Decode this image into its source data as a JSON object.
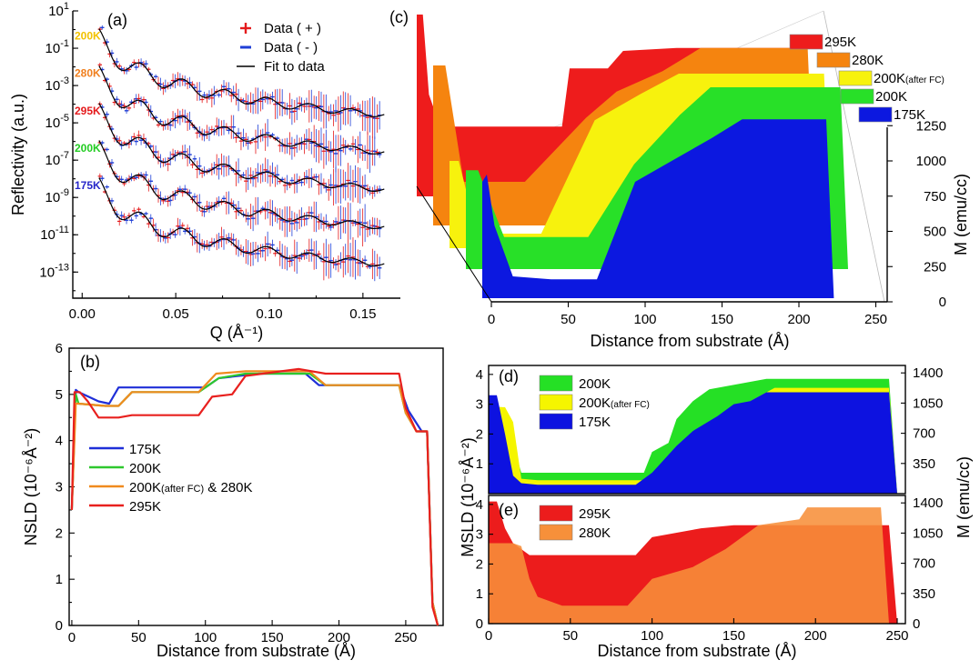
{
  "chart_data": [
    {
      "panel": "(a)",
      "type": "scatter",
      "ylog": true,
      "xlabel": "Q (Å⁻¹)",
      "ylabel": "Reflectivity (a.u.)",
      "xlim": [
        -0.005,
        0.17
      ],
      "ylim_exp": [
        -14.4,
        1.0
      ],
      "xticks": [
        "0.00",
        "0.05",
        "0.10",
        "0.15"
      ],
      "xtick_values": [
        0,
        0.05,
        0.1,
        0.15
      ],
      "yticks": [
        {
          "base": "10",
          "exp": "1",
          "v": 1
        },
        {
          "base": "10",
          "exp": "-1",
          "v": -1
        },
        {
          "base": "10",
          "exp": "-3",
          "v": -3
        },
        {
          "base": "10",
          "exp": "-5",
          "v": -5
        },
        {
          "base": "10",
          "exp": "-7",
          "v": -7
        },
        {
          "base": "10",
          "exp": "-9",
          "v": -9
        },
        {
          "base": "10",
          "exp": "-11",
          "v": -11
        },
        {
          "base": "10",
          "exp": "-13",
          "v": -13
        }
      ],
      "legend": [
        {
          "symbol": "+",
          "label": "Data ( + )",
          "color": "#e41a1c"
        },
        {
          "symbol": "-",
          "label": "Data ( - )",
          "color": "#1f3fd6"
        },
        {
          "symbol": "line",
          "label": "Fit to data",
          "color": "#000000"
        }
      ],
      "series": [
        {
          "name": "200K",
          "color": "#f2c200",
          "offset_exp": 0
        },
        {
          "name": "280K",
          "color": "#f07f1e",
          "offset_exp": -2
        },
        {
          "name": "295K",
          "color": "#e41a1c",
          "offset_exp": -4
        },
        {
          "name": "200K",
          "color": "#22cc22",
          "offset_exp": -6
        },
        {
          "name": "175K",
          "color": "#2626c9",
          "offset_exp": -8
        }
      ]
    },
    {
      "panel": "(b)",
      "type": "line",
      "xlabel": "Distance from substrate (Å)",
      "ylabel": "NSLD (10⁻⁶Å⁻²)",
      "xlim": [
        -2,
        278
      ],
      "ylim": [
        0,
        6
      ],
      "xticks": [
        0,
        50,
        100,
        150,
        200,
        250
      ],
      "yticks": [
        0,
        1,
        2,
        3,
        4,
        5,
        6
      ],
      "series": [
        {
          "name": "175K",
          "color": "#1f2fd8",
          "x": [
            0,
            3,
            5,
            20,
            28,
            35,
            100,
            110,
            140,
            175,
            185,
            245,
            252,
            262,
            266,
            270,
            274
          ],
          "y": [
            2.5,
            5.1,
            5.05,
            4.85,
            4.8,
            5.15,
            5.15,
            5.35,
            5.45,
            5.45,
            5.2,
            5.2,
            4.65,
            4.2,
            4.2,
            0.5,
            0
          ]
        },
        {
          "name": "200K",
          "color": "#2ec82e",
          "x": [
            0,
            3,
            5,
            25,
            35,
            45,
            95,
            110,
            130,
            178,
            190,
            245,
            250,
            258,
            266,
            270,
            274
          ],
          "y": [
            2.5,
            5.0,
            4.8,
            4.75,
            4.75,
            5.05,
            5.05,
            5.35,
            5.45,
            5.45,
            5.2,
            5.2,
            4.6,
            4.2,
            4.2,
            0.5,
            0
          ]
        },
        {
          "name": "200K(after FC) & 280K",
          "color": "#f08a1e",
          "x": [
            0,
            3,
            5,
            25,
            35,
            45,
            95,
            108,
            130,
            178,
            190,
            245,
            250,
            258,
            266,
            270,
            274
          ],
          "y": [
            2.5,
            4.8,
            4.8,
            4.75,
            4.75,
            5.05,
            5.05,
            5.45,
            5.5,
            5.5,
            5.2,
            5.2,
            4.6,
            4.2,
            4.2,
            0.5,
            0
          ]
        },
        {
          "name": "295K",
          "color": "#e8201e",
          "x": [
            0,
            2,
            6,
            12,
            20,
            35,
            45,
            95,
            105,
            120,
            130,
            170,
            190,
            245,
            250,
            258,
            266,
            270,
            274
          ],
          "y": [
            2.5,
            5.05,
            5.05,
            4.85,
            4.5,
            4.5,
            4.55,
            4.55,
            4.95,
            5.0,
            5.4,
            5.55,
            5.45,
            5.45,
            4.7,
            4.2,
            4.2,
            0.4,
            0
          ]
        }
      ],
      "legend_labels": [
        "175K",
        "200K",
        "200K",
        "(after FC)",
        " & 280K",
        "295K"
      ]
    },
    {
      "panel": "(c)",
      "type": "area",
      "xlabel": "Distance from substrate (Å)",
      "ylabel": "M (emu/cc)",
      "xticks": [
        0,
        50,
        100,
        150,
        200,
        250
      ],
      "zticks": [
        0,
        250,
        500,
        750,
        1000,
        1250
      ],
      "series": [
        {
          "name": "295K",
          "color": "#ee1c1c",
          "x": [
            0,
            4,
            8,
            14,
            20,
            80,
            95,
            100,
            125,
            135,
            170,
            245,
            250
          ],
          "y": [
            1250,
            1250,
            700,
            520,
            480,
            480,
            480,
            880,
            880,
            1000,
            1020,
            1020,
            0
          ]
        },
        {
          "name": "280K",
          "color": "#f5840f",
          "x": [
            0,
            8,
            20,
            60,
            100,
            120,
            150,
            175,
            245,
            250
          ],
          "y": [
            1100,
            1100,
            300,
            300,
            740,
            920,
            1060,
            1220,
            1220,
            0
          ]
        },
        {
          "name": "200K",
          "label_sub": "(after FC)",
          "color": "#f7f20d",
          "x": [
            0,
            6,
            18,
            60,
            95,
            125,
            150,
            245,
            250
          ],
          "y": [
            600,
            600,
            100,
            100,
            880,
            1060,
            1200,
            1200,
            0
          ]
        },
        {
          "name": "200K",
          "color": "#28e028",
          "x": [
            0,
            8,
            25,
            80,
            110,
            140,
            160,
            245,
            250
          ],
          "y": [
            680,
            680,
            220,
            220,
            720,
            1060,
            1250,
            1250,
            0
          ]
        },
        {
          "name": "175K",
          "color": "#0c18e0",
          "x": [
            0,
            3,
            8,
            20,
            45,
            75,
            100,
            120,
            150,
            170,
            225,
            230
          ],
          "y": [
            800,
            850,
            500,
            150,
            130,
            130,
            800,
            920,
            1100,
            1230,
            1230,
            0
          ]
        }
      ]
    },
    {
      "panel": "(d)",
      "type": "area",
      "xlim": [
        0,
        255
      ],
      "ylabel": "MSLD (10⁻⁶Å⁻²)",
      "ylim": [
        0,
        4.3
      ],
      "yticks": [
        1,
        2,
        3,
        4
      ],
      "y2ticks": [
        350,
        700,
        1050,
        1400
      ],
      "series": [
        {
          "name": "200K",
          "color": "#25e025",
          "x": [
            0,
            8,
            20,
            25,
            95,
            100,
            110,
            115,
            125,
            135,
            165,
            170,
            245,
            250
          ],
          "y": [
            2.9,
            2.9,
            0.7,
            0.7,
            0.7,
            1.4,
            1.7,
            2.5,
            3.1,
            3.5,
            3.8,
            3.85,
            3.85,
            0
          ]
        },
        {
          "name": "200K",
          "label_sub": "(after FC)",
          "color": "#f5f500",
          "x": [
            0,
            10,
            15,
            20,
            30,
            100,
            110,
            120,
            140,
            160,
            175,
            245,
            250
          ],
          "y": [
            2.9,
            2.9,
            2.4,
            0.5,
            0.45,
            0.45,
            1.0,
            1.6,
            2.4,
            3.1,
            3.55,
            3.55,
            0
          ]
        },
        {
          "name": "175K",
          "color": "#0d12e0",
          "x": [
            0,
            5,
            10,
            15,
            20,
            30,
            40,
            90,
            100,
            105,
            115,
            125,
            140,
            150,
            160,
            170,
            245,
            250
          ],
          "y": [
            3.3,
            3.3,
            2.0,
            0.6,
            0.35,
            0.3,
            0.3,
            0.3,
            0.7,
            1.0,
            1.6,
            2.1,
            2.6,
            3.0,
            3.1,
            3.4,
            3.4,
            0
          ]
        }
      ]
    },
    {
      "panel": "(e)",
      "type": "area",
      "xlabel": "Distance from substrate (Å)",
      "xlim": [
        0,
        255
      ],
      "xticks": [
        0,
        50,
        100,
        150,
        200,
        250
      ],
      "ylim": [
        0,
        4.3
      ],
      "yticks": [
        0,
        1,
        2,
        3,
        4
      ],
      "y2ticks": [
        0,
        350,
        700,
        1050,
        1400
      ],
      "series": [
        {
          "name": "295K",
          "color": "#ec1c1c",
          "x": [
            0,
            5,
            10,
            15,
            25,
            90,
            100,
            130,
            150,
            170,
            245,
            250
          ],
          "y": [
            4.1,
            4.1,
            3.2,
            2.7,
            2.3,
            2.3,
            2.9,
            3.2,
            3.3,
            3.3,
            3.3,
            0
          ]
        },
        {
          "name": "280K",
          "color": "#f7903a",
          "x": [
            0,
            15,
            20,
            25,
            30,
            45,
            50,
            85,
            100,
            125,
            145,
            165,
            190,
            195,
            240,
            245
          ],
          "y": [
            2.7,
            2.7,
            2.6,
            1.5,
            0.9,
            0.6,
            0.6,
            0.6,
            1.5,
            1.9,
            2.5,
            3.3,
            3.5,
            3.9,
            3.9,
            0
          ]
        }
      ]
    }
  ]
}
